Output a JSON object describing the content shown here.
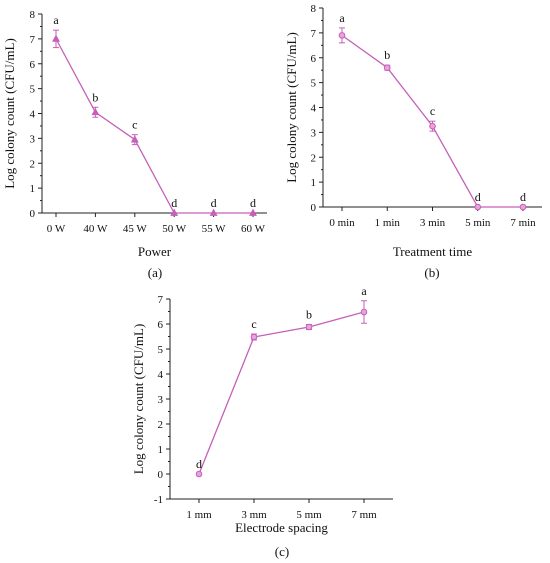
{
  "chart_data": [
    {
      "type": "line",
      "panel_label": "(a)",
      "xlabel": "Power",
      "ylabel": "Log colony count (CFU/mL)",
      "ylim": [
        0,
        8
      ],
      "yticks": [
        "0",
        "1",
        "2",
        "3",
        "4",
        "5",
        "6",
        "7",
        "8"
      ],
      "categories": [
        "0 W",
        "40 W",
        "45 W",
        "50 W",
        "55 W",
        "60 W"
      ],
      "marker": "triangle",
      "grid": false,
      "color": "#c65fb8",
      "series": [
        {
          "values": [
            7.0,
            4.05,
            2.95,
            0.0,
            0.0,
            0.0
          ],
          "errors": [
            0.35,
            0.2,
            0.2,
            0.0,
            0.0,
            0.0
          ],
          "letters": [
            "a",
            "b",
            "c",
            "d",
            "d",
            "d"
          ]
        }
      ]
    },
    {
      "type": "line",
      "panel_label": "(b)",
      "xlabel": "Treatment time",
      "ylabel": "Log colony count (CFU/mL)",
      "ylim": [
        0,
        8
      ],
      "yticks": [
        "0",
        "1",
        "2",
        "3",
        "4",
        "5",
        "6",
        "7",
        "8"
      ],
      "categories": [
        "0 min",
        "1 min",
        "3 min",
        "5 min",
        "7 min"
      ],
      "marker": "circle",
      "grid": false,
      "color": "#c65fb8",
      "series": [
        {
          "values": [
            6.9,
            5.6,
            3.25,
            0.0,
            0.0
          ],
          "errors": [
            0.3,
            0.1,
            0.2,
            0.0,
            0.0
          ],
          "letters": [
            "a",
            "b",
            "c",
            "d",
            "d"
          ]
        }
      ]
    },
    {
      "type": "line",
      "panel_label": "(c)",
      "xlabel": "Electrode spacing",
      "ylabel": "Log colony count (CFU/mL)",
      "ylim": [
        -1,
        7
      ],
      "yticks": [
        "-1",
        "0",
        "1",
        "2",
        "3",
        "4",
        "5",
        "6",
        "7"
      ],
      "categories": [
        "1 mm",
        "3 mm",
        "5 mm",
        "7 mm"
      ],
      "marker": "circle",
      "grid": false,
      "color": "#c65fb8",
      "series": [
        {
          "values": [
            0.0,
            5.48,
            5.88,
            6.48
          ],
          "errors": [
            0.0,
            0.12,
            0.1,
            0.45
          ],
          "letters": [
            "d",
            "c",
            "b",
            "a"
          ]
        }
      ]
    }
  ]
}
